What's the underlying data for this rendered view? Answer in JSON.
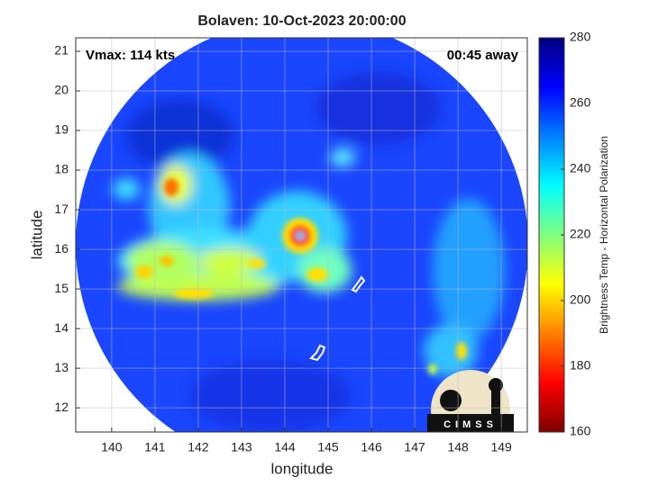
{
  "title": "Bolaven: 10-Oct-2023 20:00:00",
  "annotations": {
    "vmax": "Vmax: 114 kts",
    "time_away": "00:45 away"
  },
  "axes": {
    "xlabel": "longitude",
    "ylabel": "latitude",
    "xlim": [
      139.17,
      149.6
    ],
    "ylim": [
      11.39,
      21.34
    ],
    "xticks": [
      140,
      141,
      142,
      143,
      144,
      145,
      146,
      147,
      148,
      149
    ],
    "yticks": [
      12,
      13,
      14,
      15,
      16,
      17,
      18,
      19,
      20,
      21
    ],
    "grid": true
  },
  "colorbar": {
    "label": "Brightness Temp - Horizontal Polarization",
    "lim": [
      160,
      280
    ],
    "ticks": [
      160,
      180,
      200,
      220,
      240,
      260,
      280
    ],
    "colormap": [
      "#800000",
      "#ff0000",
      "#ff8000",
      "#ffff00",
      "#80ff80",
      "#00ffff",
      "#0080ff",
      "#0000ff",
      "#000080"
    ]
  },
  "logo": "CIMSS"
}
